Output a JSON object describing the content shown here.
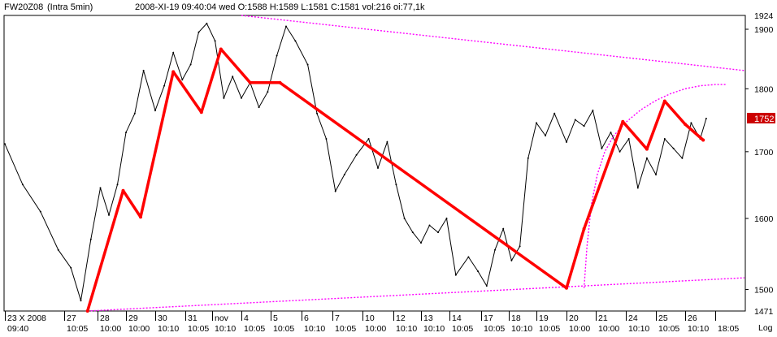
{
  "header": {
    "symbol": "FW20Z08",
    "interval": "(Intra 5min)",
    "info": "2008-XI-19  09:40:04 wed O:1588 H:1589 L:1581 C:1581 vol:216 oi:77,1k"
  },
  "colors": {
    "price": "#000000",
    "zigzag": "#ff0000",
    "channel": "#ff00ff",
    "axis": "#000000",
    "background": "#ffffff",
    "last_price_bg": "#cc0000"
  },
  "chart_data": {
    "type": "line",
    "scale": "log",
    "ylim": [
      1471,
      1924
    ],
    "y_ticks": [
      1500,
      1600,
      1700,
      1800,
      1900
    ],
    "y_edge_labels": [
      "1924",
      "1471"
    ],
    "y_scale_label": "Log",
    "last_price": 1752,
    "last_price_label": "1752",
    "x_date_labels": [
      "23 X 2008",
      "27",
      "28",
      "29",
      "30",
      "31",
      "nov",
      "4",
      "5",
      "6",
      "7",
      "10",
      "12",
      "13",
      "14",
      "17",
      "18",
      "19",
      "20",
      "21",
      "24",
      "25",
      "26"
    ],
    "x_time_labels": [
      "09:40",
      "10:05",
      "10:00",
      "10:00",
      "10:10",
      "10:05",
      "10:10",
      "10:05",
      "10:05",
      "10:10",
      "10:05",
      "10:00",
      "10:10",
      "10:10",
      "10:05",
      "10:05",
      "10:10",
      "10:05",
      "10:00",
      "10:00",
      "10:10",
      "10:05",
      "10:10",
      "18:05"
    ],
    "price_series": {
      "name": "",
      "x": [
        0,
        0.3,
        0.6,
        0.9,
        1.2,
        1.5,
        1.8,
        2.1,
        2.4,
        2.7,
        3.0,
        3.3,
        3.6,
        4.0,
        4.3,
        4.6,
        4.9,
        5.2,
        5.5,
        5.8,
        6.1,
        6.4,
        6.7,
        7.0,
        7.3,
        7.6,
        7.9,
        8.2,
        8.5,
        8.8,
        9.2,
        9.5,
        9.8,
        10.1,
        10.4,
        10.8,
        11.2,
        11.5,
        11.8,
        12.1,
        12.4,
        12.7,
        13.0,
        13.3,
        13.6,
        13.9,
        14.2,
        14.6,
        14.9,
        15.2,
        15.5,
        15.8,
        16.1,
        16.4,
        16.7,
        17.0,
        17.3,
        17.6,
        18.0,
        18.3,
        18.6,
        18.9,
        19.2,
        19.5,
        19.8,
        20.1,
        20.4,
        20.7,
        21.0,
        21.3,
        21.6,
        21.9,
        22.2,
        22.5,
        22.7
      ],
      "values": [
        1712,
        1650,
        1610,
        1555,
        1530,
        1485,
        1570,
        1645,
        1605,
        1650,
        1730,
        1760,
        1830,
        1765,
        1805,
        1860,
        1815,
        1840,
        1895,
        1910,
        1880,
        1785,
        1820,
        1785,
        1810,
        1770,
        1795,
        1855,
        1905,
        1880,
        1840,
        1760,
        1720,
        1640,
        1665,
        1695,
        1720,
        1675,
        1715,
        1650,
        1600,
        1580,
        1565,
        1590,
        1580,
        1600,
        1520,
        1545,
        1525,
        1505,
        1555,
        1585,
        1540,
        1560,
        1690,
        1745,
        1725,
        1760,
        1715,
        1750,
        1740,
        1765,
        1705,
        1730,
        1700,
        1720,
        1645,
        1690,
        1665,
        1720,
        1705,
        1690,
        1745,
        1720,
        1752
      ]
    },
    "zigzag": {
      "x": [
        1.7,
        2.9,
        3.5,
        4.6,
        5.6,
        6.3,
        7.3,
        8.3,
        18.0,
        18.6,
        19.9,
        20.7,
        21.3,
        22.0,
        22.6
      ],
      "values": [
        1471,
        1641,
        1602,
        1828,
        1762,
        1866,
        1810,
        1810,
        1502,
        1585,
        1747,
        1704,
        1780,
        1743,
        1718
      ]
    },
    "channel_upper": {
      "x": [
        7.0,
        24.0
      ],
      "values": [
        1924,
        1830
      ]
    },
    "channel_lower": {
      "x": [
        1.7,
        24.0
      ],
      "values": [
        1471,
        1516
      ]
    },
    "arc_curve": {
      "x": [
        18.6,
        18.7,
        18.85,
        19.05,
        19.3,
        19.6,
        20.0,
        20.5,
        21.0,
        21.5,
        22.0,
        22.5,
        23.0,
        23.4
      ],
      "values": [
        1502,
        1560,
        1620,
        1665,
        1700,
        1725,
        1746,
        1766,
        1781,
        1792,
        1800,
        1805,
        1807,
        1807
      ]
    }
  }
}
